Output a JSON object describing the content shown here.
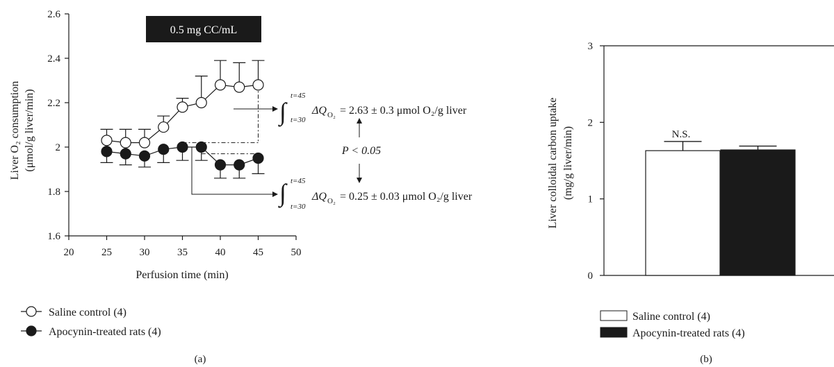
{
  "chart_data": [
    {
      "type": "line",
      "panel_label": "(a)",
      "annotation_box": "0.5 mg CC/mL",
      "xlabel": "Perfusion time (min)",
      "ylabel_line1": "Liver O₂ consumption",
      "ylabel_line2": "(μmol/g liver/min)",
      "xlim": [
        20,
        50
      ],
      "ylim": [
        1.6,
        2.6
      ],
      "x_ticks": [
        "20",
        "25",
        "30",
        "35",
        "40",
        "45",
        "50"
      ],
      "y_ticks": [
        "1.6",
        "1.8",
        "2",
        "2.2",
        "2.4",
        "2.6"
      ],
      "x": [
        25,
        27.5,
        30,
        32.5,
        35,
        37.5,
        40,
        42.5,
        45
      ],
      "series": [
        {
          "name": "Saline control (4)",
          "marker": "open-circle",
          "values": [
            2.03,
            2.02,
            2.02,
            2.09,
            2.18,
            2.2,
            2.28,
            2.27,
            2.28
          ],
          "err_up": [
            0.05,
            0.06,
            0.06,
            0.05,
            0.04,
            0.12,
            0.11,
            0.11,
            0.11
          ]
        },
        {
          "name": "Apocynin-treated rats (4)",
          "marker": "filled-circle",
          "values": [
            1.98,
            1.97,
            1.96,
            1.99,
            2.0,
            2.0,
            1.92,
            1.92,
            1.95
          ],
          "err_down": [
            0.05,
            0.05,
            0.05,
            0.06,
            0.06,
            0.06,
            0.06,
            0.06,
            0.07
          ]
        }
      ],
      "annotations": {
        "integral_upper": "t=45",
        "integral_lower": "t=30",
        "saline_result": "= 2.63 ± 0.3 μmol O₂/g liver",
        "apocynin_result": "= 0.25 ± 0.03 μmol O₂/g liver",
        "p_value": "P < 0.05",
        "delta": "ΔQ",
        "delta_sub": "O₂"
      }
    },
    {
      "type": "bar",
      "panel_label": "(b)",
      "ylabel_line1": "Liver colloidal carbon uptake",
      "ylabel_line2": "(mg/g liver/min)",
      "ylim": [
        0,
        3
      ],
      "y_ticks": [
        "0",
        "1",
        "2",
        "3"
      ],
      "categories": [
        "Saline control (4)",
        "Apocynin-treated rats (4)"
      ],
      "values": [
        1.63,
        1.64
      ],
      "err_up": [
        0.12,
        0.05
      ],
      "colors": [
        "#ffffff",
        "#1a1a1a"
      ],
      "annotation": "N.S."
    }
  ]
}
